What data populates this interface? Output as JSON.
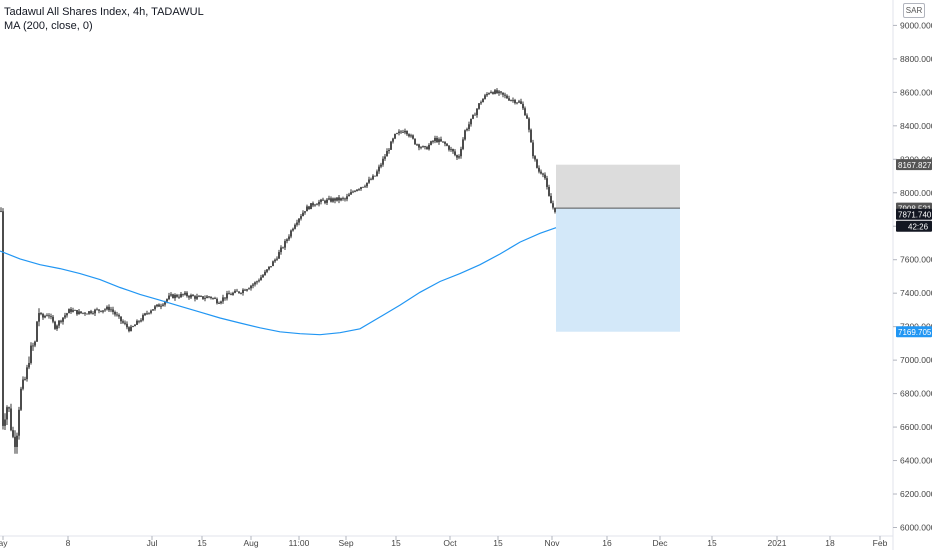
{
  "header": {
    "symbol_line": "Tadawul All Shares Index, 4h, TADAWUL",
    "indicator_line": "MA (200, close, 0)",
    "currency": "SAR"
  },
  "colors": {
    "candle": "#000000",
    "ma": "#2196f3",
    "profit_zone": "#d3e8f9",
    "loss_zone": "#dcdcdc",
    "price_tag": "#131722",
    "ma_tag": "#2196f3"
  },
  "chart_data": {
    "type": "line",
    "title": "Tadawul All Shares Index, 4h, TADAWUL",
    "y_ticks": [
      "9000.000",
      "8800.000",
      "8600.000",
      "8400.000",
      "8200.000",
      "8000.000",
      "7800.000",
      "7600.000",
      "7400.000",
      "7200.000",
      "7000.000",
      "6800.000",
      "6600.000",
      "6400.000",
      "6200.000",
      "6000.000"
    ],
    "ylim": [
      5985,
      9110
    ],
    "x_ticks": [
      "ay",
      "8",
      "Jul",
      "15",
      "Aug",
      "11:00",
      "Sep",
      "15",
      "Oct",
      "15",
      "Nov",
      "16",
      "Dec",
      "15",
      "2021",
      "18",
      "Feb"
    ],
    "price_labels": {
      "stop": "8167.827",
      "entry": "7908.521",
      "last": "7871.740",
      "countdown": "42:26",
      "target": "7169.705"
    },
    "position": {
      "entry": 7908.521,
      "stop": 8167.827,
      "target": 7169.705
    },
    "series": [
      {
        "type": "candlestick",
        "anchors": [
          [
            2,
            6600
          ],
          [
            8,
            6750
          ],
          [
            12,
            6550
          ],
          [
            16,
            6500
          ],
          [
            20,
            6800
          ],
          [
            26,
            6900
          ],
          [
            30,
            7050
          ],
          [
            35,
            7100
          ],
          [
            38,
            7300
          ],
          [
            42,
            7250
          ],
          [
            48,
            7280
          ],
          [
            55,
            7200
          ],
          [
            62,
            7250
          ],
          [
            70,
            7300
          ],
          [
            80,
            7280
          ],
          [
            90,
            7290
          ],
          [
            100,
            7300
          ],
          [
            110,
            7310
          ],
          [
            120,
            7240
          ],
          [
            130,
            7180
          ],
          [
            140,
            7240
          ],
          [
            150,
            7300
          ],
          [
            160,
            7330
          ],
          [
            170,
            7380
          ],
          [
            185,
            7390
          ],
          [
            200,
            7370
          ],
          [
            210,
            7380
          ],
          [
            218,
            7350
          ],
          [
            228,
            7390
          ],
          [
            240,
            7410
          ],
          [
            255,
            7460
          ],
          [
            265,
            7520
          ],
          [
            275,
            7600
          ],
          [
            285,
            7700
          ],
          [
            295,
            7820
          ],
          [
            305,
            7900
          ],
          [
            315,
            7940
          ],
          [
            325,
            7950
          ],
          [
            335,
            7960
          ],
          [
            345,
            7960
          ],
          [
            355,
            8020
          ],
          [
            365,
            8050
          ],
          [
            375,
            8100
          ],
          [
            385,
            8220
          ],
          [
            395,
            8340
          ],
          [
            405,
            8380
          ],
          [
            415,
            8300
          ],
          [
            425,
            8260
          ],
          [
            435,
            8320
          ],
          [
            445,
            8290
          ],
          [
            452,
            8250
          ],
          [
            458,
            8200
          ],
          [
            465,
            8370
          ],
          [
            472,
            8440
          ],
          [
            480,
            8540
          ],
          [
            490,
            8610
          ],
          [
            500,
            8590
          ],
          [
            510,
            8560
          ],
          [
            520,
            8540
          ],
          [
            527,
            8450
          ],
          [
            532,
            8250
          ],
          [
            538,
            8130
          ],
          [
            544,
            8120
          ],
          [
            548,
            7990
          ],
          [
            552,
            7920
          ],
          [
            556,
            7890
          ]
        ]
      },
      {
        "name": "MA (200, close, 0)",
        "type": "line",
        "points": [
          [
            0,
            7652
          ],
          [
            20,
            7605
          ],
          [
            40,
            7570
          ],
          [
            60,
            7547
          ],
          [
            80,
            7517
          ],
          [
            100,
            7481
          ],
          [
            120,
            7434
          ],
          [
            140,
            7393
          ],
          [
            160,
            7358
          ],
          [
            180,
            7322
          ],
          [
            200,
            7287
          ],
          [
            220,
            7252
          ],
          [
            240,
            7222
          ],
          [
            260,
            7193
          ],
          [
            280,
            7169
          ],
          [
            300,
            7158
          ],
          [
            320,
            7152
          ],
          [
            340,
            7164
          ],
          [
            360,
            7187
          ],
          [
            380,
            7258
          ],
          [
            400,
            7329
          ],
          [
            420,
            7405
          ],
          [
            440,
            7470
          ],
          [
            460,
            7517
          ],
          [
            480,
            7570
          ],
          [
            500,
            7634
          ],
          [
            520,
            7705
          ],
          [
            540,
            7758
          ],
          [
            556,
            7791
          ]
        ]
      }
    ]
  }
}
